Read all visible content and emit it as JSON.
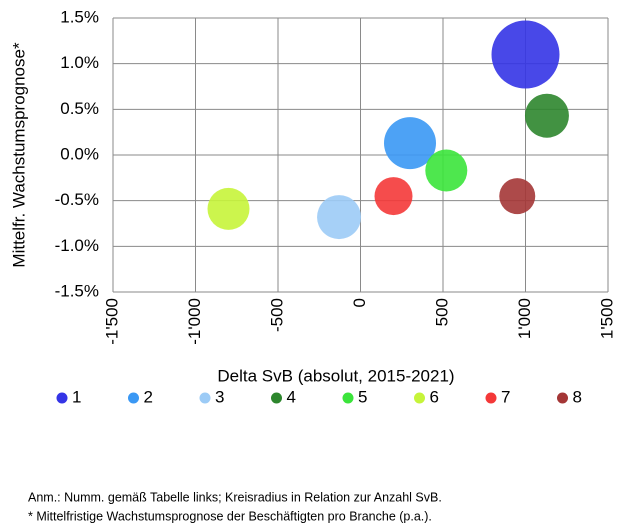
{
  "chart_data": {
    "type": "bubble",
    "ylabel": "Mittelfr. Wachstumsprognose*",
    "xlabel": "Delta SvB (absolut, 2015-2021)",
    "xlim": [
      -1500,
      1500
    ],
    "xticks": [
      {
        "value": -1500,
        "label": "-1'500"
      },
      {
        "value": -1000,
        "label": "-1'000"
      },
      -500,
      0,
      500,
      {
        "value": 1000,
        "label": "1'000"
      },
      {
        "value": 1500,
        "label": "1'500"
      }
    ],
    "ylim": [
      -1.5,
      1.5
    ],
    "yticks": [
      {
        "value": 1.5,
        "label": "1.5%"
      },
      {
        "value": 1.0,
        "label": "1.0%"
      },
      {
        "value": 0.5,
        "label": "0.5%"
      },
      {
        "value": 0.0,
        "label": "0.0%"
      },
      {
        "value": -0.5,
        "label": "-0.5%"
      },
      {
        "value": -1.0,
        "label": "-1.0%"
      },
      {
        "value": -1.5,
        "label": "-1.5%"
      }
    ],
    "grid": true,
    "legend": "bottom",
    "series": [
      {
        "name": "1",
        "color": "#3434e6",
        "x": [
          1000
        ],
        "values": [
          1.1
        ],
        "sizes": [
          34
        ]
      },
      {
        "name": "2",
        "color": "#3a98f4",
        "x": [
          300
        ],
        "values": [
          0.13
        ],
        "sizes": [
          26
        ]
      },
      {
        "name": "3",
        "color": "#9ccbf6",
        "x": [
          -130
        ],
        "values": [
          -0.68
        ],
        "sizes": [
          22
        ]
      },
      {
        "name": "4",
        "color": "#2d862d",
        "x": [
          1130
        ],
        "values": [
          0.43
        ],
        "sizes": [
          22
        ]
      },
      {
        "name": "5",
        "color": "#3be43b",
        "x": [
          520
        ],
        "values": [
          -0.17
        ],
        "sizes": [
          21
        ]
      },
      {
        "name": "6",
        "color": "#c6f43a",
        "x": [
          -800
        ],
        "values": [
          -0.59
        ],
        "sizes": [
          21
        ]
      },
      {
        "name": "7",
        "color": "#f43838",
        "x": [
          200
        ],
        "values": [
          -0.45
        ],
        "sizes": [
          19
        ]
      },
      {
        "name": "8",
        "color": "#a43636",
        "x": [
          950
        ],
        "values": [
          -0.45
        ],
        "sizes": [
          18
        ]
      }
    ],
    "notes": [
      "Anm.: Numm. gemäß Tabelle links; Kreisradius in Relation zur Anzahl SvB.",
      "* Mittelfristige Wachstumsprognose der Beschäftigten pro Branche (p.a.)."
    ]
  }
}
